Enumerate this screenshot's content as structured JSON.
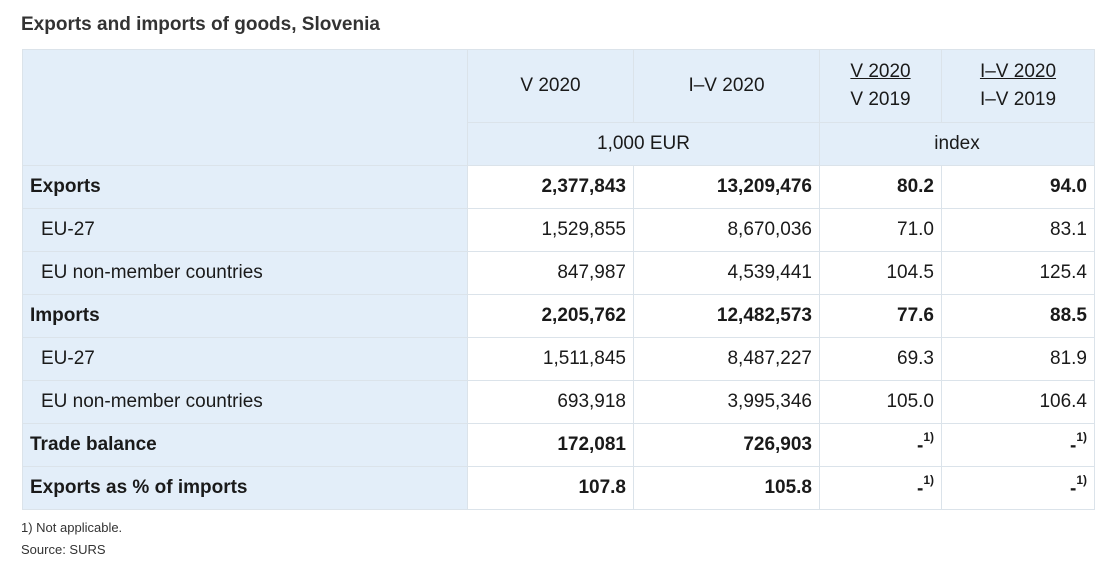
{
  "title": "Exports and imports of goods, Slovenia",
  "header": {
    "col1": "V 2020",
    "col2": "I–V 2020",
    "col3": {
      "num": "V 2020",
      "den": "V 2019"
    },
    "col4": {
      "num": "I–V 2020",
      "den": "I–V 2019"
    },
    "unit_eur": "1,000 EUR",
    "unit_index": "index"
  },
  "rows": [
    {
      "label": "Exports",
      "v2020": "2,377,843",
      "iv2020": "13,209,476",
      "idx_v": "80.2",
      "idx_iv": "94.0"
    },
    {
      "label": "EU-27",
      "v2020": "1,529,855",
      "iv2020": "8,670,036",
      "idx_v": "71.0",
      "idx_iv": "83.1"
    },
    {
      "label": "EU non-member countries",
      "v2020": "847,987",
      "iv2020": "4,539,441",
      "idx_v": "104.5",
      "idx_iv": "125.4"
    },
    {
      "label": "Imports",
      "v2020": "2,205,762",
      "iv2020": "12,482,573",
      "idx_v": "77.6",
      "idx_iv": "88.5"
    },
    {
      "label": "EU-27",
      "v2020": "1,511,845",
      "iv2020": "8,487,227",
      "idx_v": "69.3",
      "idx_iv": "81.9"
    },
    {
      "label": "EU non-member countries",
      "v2020": "693,918",
      "iv2020": "3,995,346",
      "idx_v": "105.0",
      "idx_iv": "106.4"
    },
    {
      "label": "Trade balance",
      "v2020": "172,081",
      "iv2020": "726,903",
      "idx_v": "-",
      "idx_iv": "-"
    },
    {
      "label": "Exports as % of imports",
      "v2020": "107.8",
      "iv2020": "105.8",
      "idx_v": "-",
      "idx_iv": "-"
    }
  ],
  "na_note_mark": "1)",
  "footnote": "1) Not applicable.",
  "source": "Source: SURS"
}
